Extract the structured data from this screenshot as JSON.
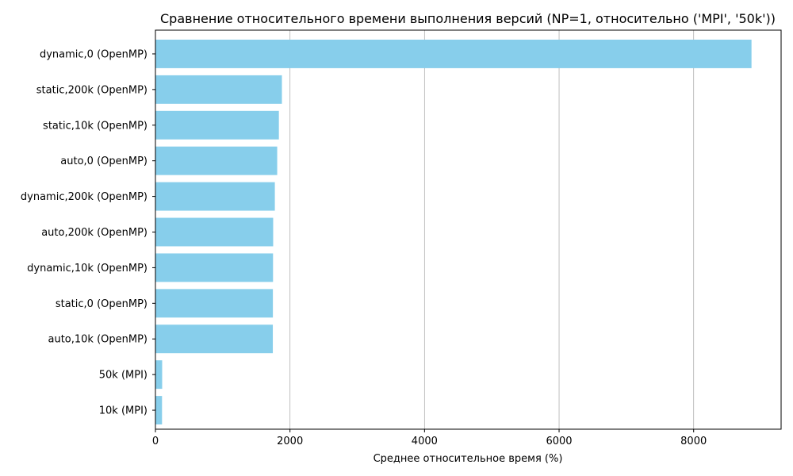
{
  "chart_data": {
    "type": "bar",
    "orientation": "horizontal",
    "title": "Сравнение относительного времени выполнения версий (NP=1, относительно ('MPI', '50k'))",
    "xlabel": "Среднее относительное время (%)",
    "ylabel": "",
    "categories": [
      "dynamic,0 (OpenMP)",
      "static,200k (OpenMP)",
      "static,10k (OpenMP)",
      "auto,0 (OpenMP)",
      "dynamic,200k (OpenMP)",
      "auto,200k (OpenMP)",
      "dynamic,10k (OpenMP)",
      "static,0 (OpenMP)",
      "auto,10k (OpenMP)",
      "50k (MPI)",
      "10k (MPI)"
    ],
    "values": [
      8860,
      1880,
      1835,
      1810,
      1775,
      1750,
      1748,
      1746,
      1745,
      100,
      98
    ],
    "xlim": [
      0,
      9300
    ],
    "xticks": [
      0,
      2000,
      4000,
      6000,
      8000
    ],
    "grid": "x",
    "bar_color": "#87ceeb"
  }
}
